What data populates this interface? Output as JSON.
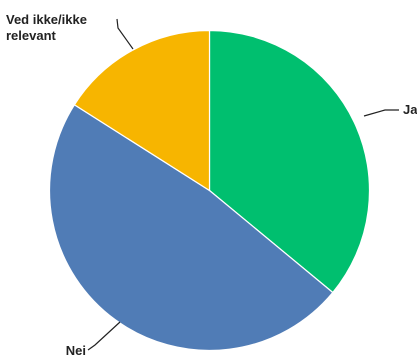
{
  "chart_data": {
    "type": "pie",
    "categories": [
      "Ja",
      "Nei",
      "Ved ikke/ikke relevant"
    ],
    "values": [
      36,
      48,
      16
    ],
    "label_lines": {
      "Ja": [
        "Ja"
      ],
      "Nei": [
        "Nei"
      ],
      "Ved ikke/ikke relevant": [
        "Ved ikke/ikke",
        "relevant"
      ]
    },
    "colors": {
      "Ja": "#00bf6f",
      "Nei": "#507cb6",
      "Ved ikke/ikke relevant": "#f7b500"
    },
    "legend": "none",
    "title": ""
  }
}
